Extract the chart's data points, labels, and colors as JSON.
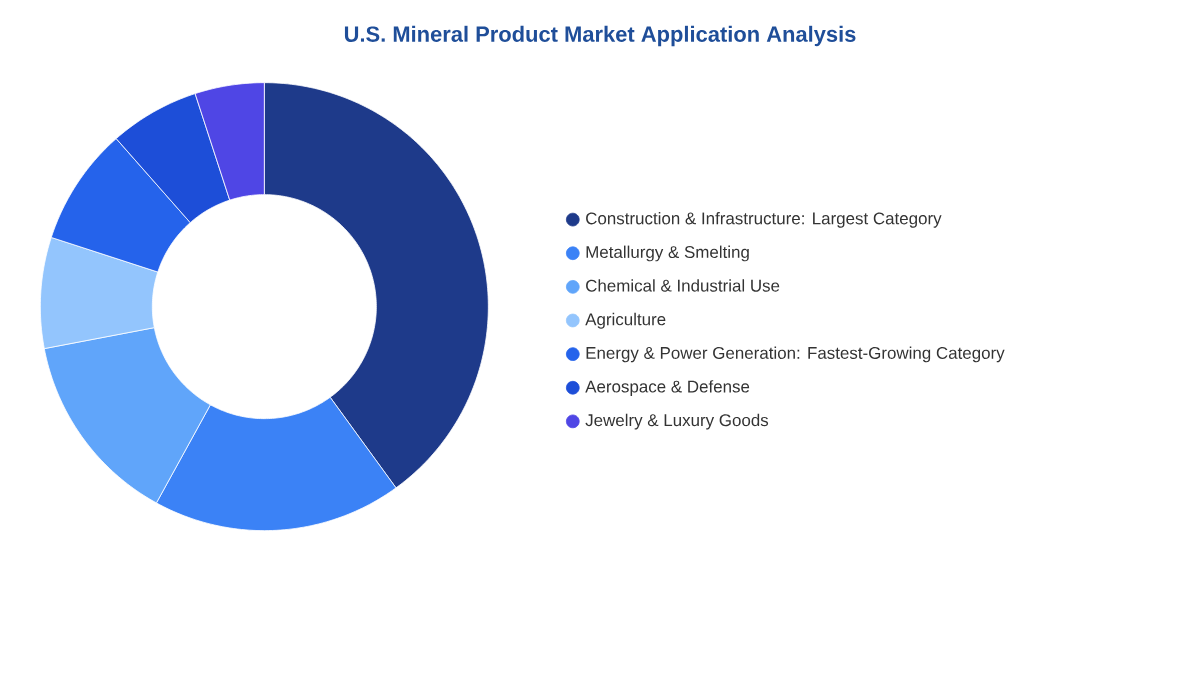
{
  "chart_data": {
    "type": "donut",
    "title": "U.S. Mineral Product Market Application Analysis",
    "categories": [
      "Construction & Infrastructure: Largest Category",
      "Metallurgy & Smelting",
      "Chemical & Industrial Use",
      "Agriculture",
      "Energy & Power Generation: Fastest-Growing Category",
      "Aerospace & Defense",
      "Jewelry & Luxury Goods"
    ],
    "values": [
      40,
      18,
      14,
      8,
      8.5,
      6.5,
      5
    ],
    "colors": [
      "#1e3a8a",
      "#3b82f6",
      "#60a5fa",
      "#93c5fd",
      "#2563eb",
      "#1d4ed8",
      "#4f46e5"
    ],
    "legend": "right"
  }
}
